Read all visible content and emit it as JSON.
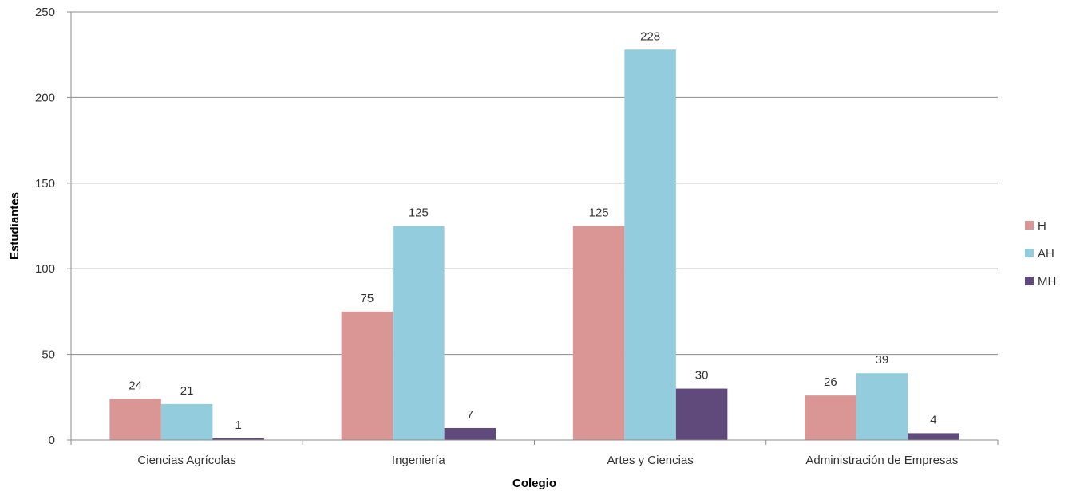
{
  "chart_data": {
    "type": "bar",
    "title": "",
    "xlabel": "Colegio",
    "ylabel": "Estudiantes",
    "ylim": [
      0,
      250
    ],
    "yticks": [
      0,
      50,
      100,
      150,
      200,
      250
    ],
    "grid": true,
    "legend_position": "right",
    "categories": [
      "Ciencias Agrícolas",
      "Ingeniería",
      "Artes y Ciencias",
      "Administración de Empresas"
    ],
    "series": [
      {
        "name": "H",
        "values": [
          24,
          75,
          125,
          26
        ],
        "color": "#d99694"
      },
      {
        "name": "AH",
        "values": [
          21,
          125,
          228,
          39
        ],
        "color": "#93cddd"
      },
      {
        "name": "MH",
        "values": [
          1,
          7,
          30,
          4
        ],
        "color": "#604a7b"
      }
    ]
  }
}
